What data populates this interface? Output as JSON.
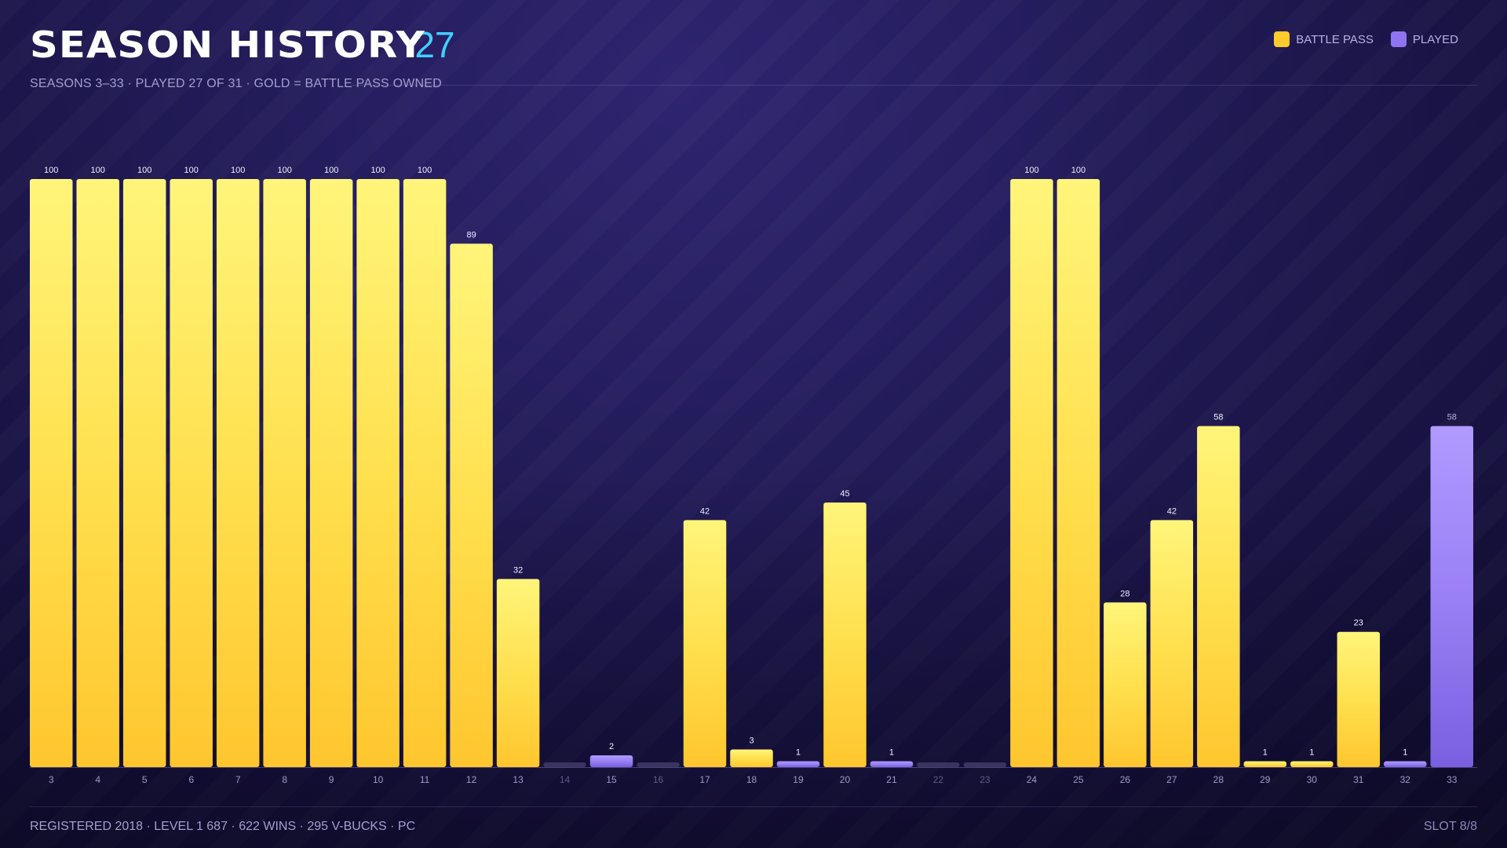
{
  "header": {
    "title": "SEASON HISTORY",
    "count": "27",
    "subtitle": "SEASONS 3–33 · PLAYED 27 OF 31 · GOLD = BATTLE PASS OWNED"
  },
  "legend": {
    "battle_pass_label": "BATTLE PASS",
    "played_label": "PLAYED"
  },
  "colors": {
    "battle_pass": "#ffca2b",
    "played": "#8f74ef",
    "empty": "#3a3560",
    "accent": "#3fd0ff"
  },
  "footer": {
    "info": "REGISTERED 2018 · LEVEL 1 687 · 622 WINS · 295 V-BUCKS · PC",
    "slot": "SLOT 8/8"
  },
  "chart_data": {
    "type": "bar",
    "title": "SEASON HISTORY",
    "xlabel": "",
    "ylabel": "",
    "ylim": [
      0,
      100
    ],
    "grid": false,
    "legend_position": "top-right",
    "categories": [
      "3",
      "4",
      "5",
      "6",
      "7",
      "8",
      "9",
      "10",
      "11",
      "12",
      "13",
      "14",
      "15",
      "16",
      "17",
      "18",
      "19",
      "20",
      "21",
      "22",
      "23",
      "24",
      "25",
      "26",
      "27",
      "28",
      "29",
      "30",
      "31",
      "32",
      "33"
    ],
    "values": [
      100,
      100,
      100,
      100,
      100,
      100,
      100,
      100,
      100,
      89,
      32,
      null,
      2,
      null,
      42,
      3,
      1,
      45,
      1,
      null,
      null,
      100,
      100,
      28,
      42,
      58,
      1,
      1,
      23,
      1,
      58
    ],
    "status": [
      "battle_pass",
      "battle_pass",
      "battle_pass",
      "battle_pass",
      "battle_pass",
      "battle_pass",
      "battle_pass",
      "battle_pass",
      "battle_pass",
      "battle_pass",
      "battle_pass",
      "none",
      "played",
      "none",
      "battle_pass",
      "battle_pass",
      "played",
      "battle_pass",
      "played",
      "none",
      "none",
      "battle_pass",
      "battle_pass",
      "battle_pass",
      "battle_pass",
      "battle_pass",
      "battle_pass",
      "battle_pass",
      "battle_pass",
      "played",
      "played"
    ],
    "series": [
      {
        "name": "BATTLE PASS",
        "color": "#ffca2b"
      },
      {
        "name": "PLAYED",
        "color": "#8f74ef"
      }
    ]
  }
}
